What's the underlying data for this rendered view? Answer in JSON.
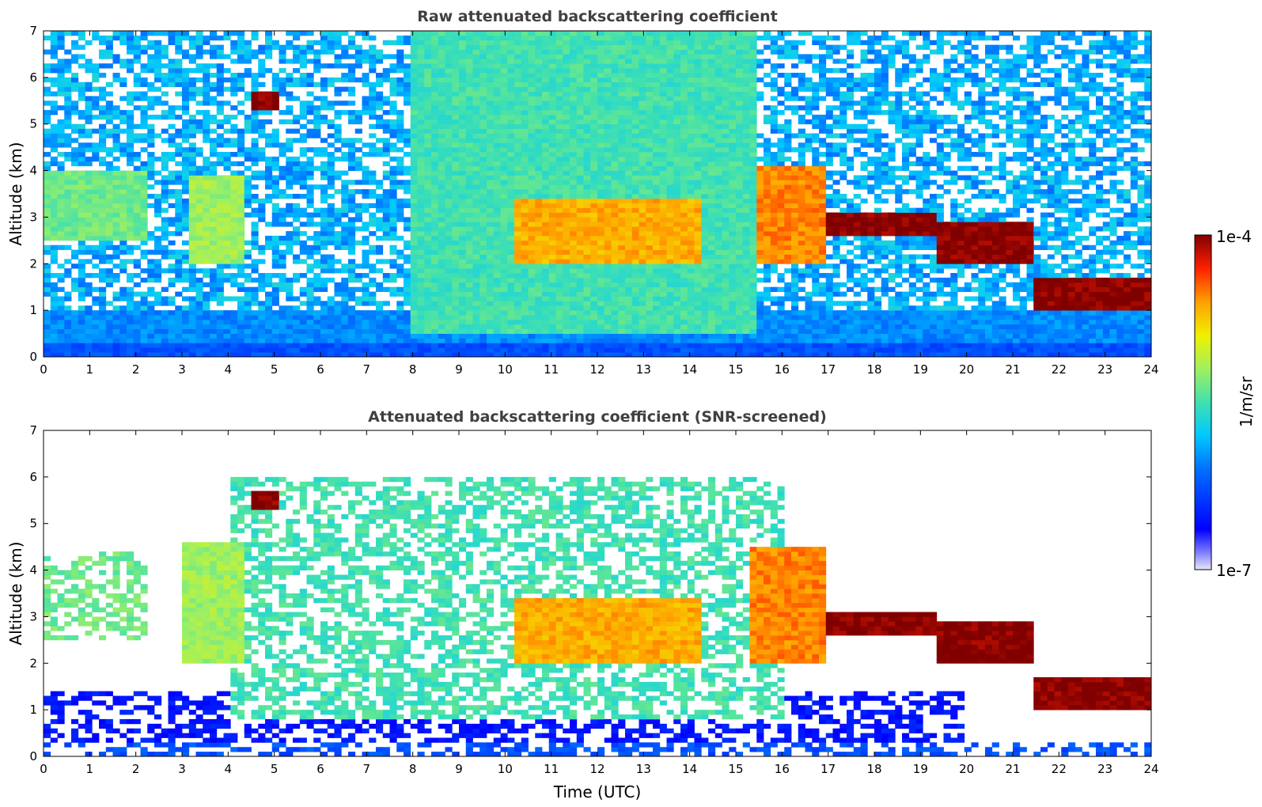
{
  "chart_data": [
    {
      "type": "heatmap",
      "title": "Raw attenuated backscattering coefficient",
      "xlabel": "",
      "ylabel": "Altitude (km)",
      "xlim": [
        0,
        24
      ],
      "ylim": [
        0,
        7
      ],
      "x_ticks": [
        "0",
        "1",
        "2",
        "3",
        "4",
        "5",
        "6",
        "7",
        "8",
        "9",
        "10",
        "11",
        "12",
        "13",
        "14",
        "15",
        "16",
        "17",
        "18",
        "19",
        "20",
        "21",
        "22",
        "23",
        "24"
      ],
      "y_ticks": [
        "0",
        "1",
        "2",
        "3",
        "4",
        "5",
        "6",
        "7"
      ],
      "colorscale": "log",
      "features": [
        {
          "name": "boundary-layer",
          "x_range": [
            0,
            24
          ],
          "alt_range": [
            0,
            0.3
          ],
          "level": 0.25
        },
        {
          "name": "low-noise-band",
          "x_range": [
            0,
            24
          ],
          "alt_range": [
            0.3,
            1.0
          ],
          "level": 0.33
        },
        {
          "name": "midday-aerosol",
          "x_range": [
            8,
            15.5
          ],
          "alt_range": [
            0.5,
            7
          ],
          "level": 0.5
        },
        {
          "name": "cloud-early",
          "x_range": [
            0,
            2.3
          ],
          "alt_range": [
            2.5,
            4.0
          ],
          "level": 0.55
        },
        {
          "name": "virga-3-4h",
          "x_range": [
            3.2,
            4.3
          ],
          "alt_range": [
            2.0,
            3.9
          ],
          "level": 0.6
        },
        {
          "name": "cloud-5h",
          "x": 4.8,
          "alt": 5.5,
          "level": 1.0
        },
        {
          "name": "cloud-mid-day",
          "x_range": [
            10.2,
            14.3
          ],
          "alt_range": [
            2.0,
            3.4
          ],
          "level": 0.78
        },
        {
          "name": "cloud-afternoon",
          "x_range": [
            15.4,
            17.0
          ],
          "alt_range": [
            2.0,
            4.1
          ],
          "level": 0.82
        },
        {
          "name": "cloud-layer-17-19",
          "x_range": [
            17.0,
            19.3
          ],
          "alt_range": [
            2.65,
            3.1
          ],
          "level": 1.0
        },
        {
          "name": "cloud-layer-19-21",
          "x_range": [
            19.3,
            21.4
          ],
          "alt_range": [
            2.0,
            2.9
          ],
          "level": 1.0
        },
        {
          "name": "cloud-layer-21-24",
          "x_range": [
            21.5,
            24
          ],
          "alt_range": [
            1.0,
            1.7
          ],
          "level": 1.0
        }
      ]
    },
    {
      "type": "heatmap",
      "title": "Attenuated backscattering coefficient (SNR-screened)",
      "xlabel": "Time (UTC)",
      "ylabel": "Altitude (km)",
      "xlim": [
        0,
        24
      ],
      "ylim": [
        0,
        7
      ],
      "x_ticks": [
        "0",
        "1",
        "2",
        "3",
        "4",
        "5",
        "6",
        "7",
        "8",
        "9",
        "10",
        "11",
        "12",
        "13",
        "14",
        "15",
        "16",
        "17",
        "18",
        "19",
        "20",
        "21",
        "22",
        "23",
        "24"
      ],
      "y_ticks": [
        "0",
        "1",
        "2",
        "3",
        "4",
        "5",
        "6",
        "7"
      ],
      "colorscale": "log",
      "features": [
        {
          "name": "boundary-layer",
          "x_range": [
            0,
            24
          ],
          "alt_range": [
            0,
            0.25
          ],
          "level": 0.25
        },
        {
          "name": "aerosol-wisps",
          "x_range": [
            0,
            20
          ],
          "alt_range": [
            0.25,
            1.4
          ],
          "level": 0.15
        },
        {
          "name": "midday-aerosol",
          "x_range": [
            4,
            16
          ],
          "alt_range": [
            0.8,
            6.0
          ],
          "level": 0.5
        },
        {
          "name": "cloud-early",
          "x_range": [
            0,
            2.3
          ],
          "alt_range": [
            2.5,
            4.4
          ],
          "level": 0.55
        },
        {
          "name": "virga-3-4h",
          "x_range": [
            3.0,
            4.4
          ],
          "alt_range": [
            2.0,
            4.6
          ],
          "level": 0.6
        },
        {
          "name": "cloud-5h",
          "x": 4.8,
          "alt": 5.55,
          "level": 1.0
        },
        {
          "name": "cloud-mid-day",
          "x_range": [
            10.2,
            14.3
          ],
          "alt_range": [
            2.0,
            3.4
          ],
          "level": 0.78
        },
        {
          "name": "cloud-afternoon",
          "x_range": [
            15.3,
            17.0
          ],
          "alt_range": [
            2.0,
            4.5
          ],
          "level": 0.82
        },
        {
          "name": "cloud-layer-17-19",
          "x_range": [
            17.0,
            19.3
          ],
          "alt_range": [
            2.65,
            3.1
          ],
          "level": 1.0
        },
        {
          "name": "cloud-layer-19-21",
          "x_range": [
            19.3,
            21.4
          ],
          "alt_range": [
            2.0,
            2.9
          ],
          "level": 1.0
        },
        {
          "name": "cloud-layer-21-24",
          "x_range": [
            21.5,
            24
          ],
          "alt_range": [
            1.0,
            1.7
          ],
          "level": 1.0
        }
      ]
    }
  ],
  "colorbar": {
    "label": "1/m/sr",
    "max_label": "1e-4",
    "min_label": "1e-7",
    "range": [
      1e-07,
      0.0001
    ],
    "colormap": "jet"
  },
  "colors": {
    "title": "#404040",
    "axis": "#000000",
    "background": "#ffffff"
  }
}
